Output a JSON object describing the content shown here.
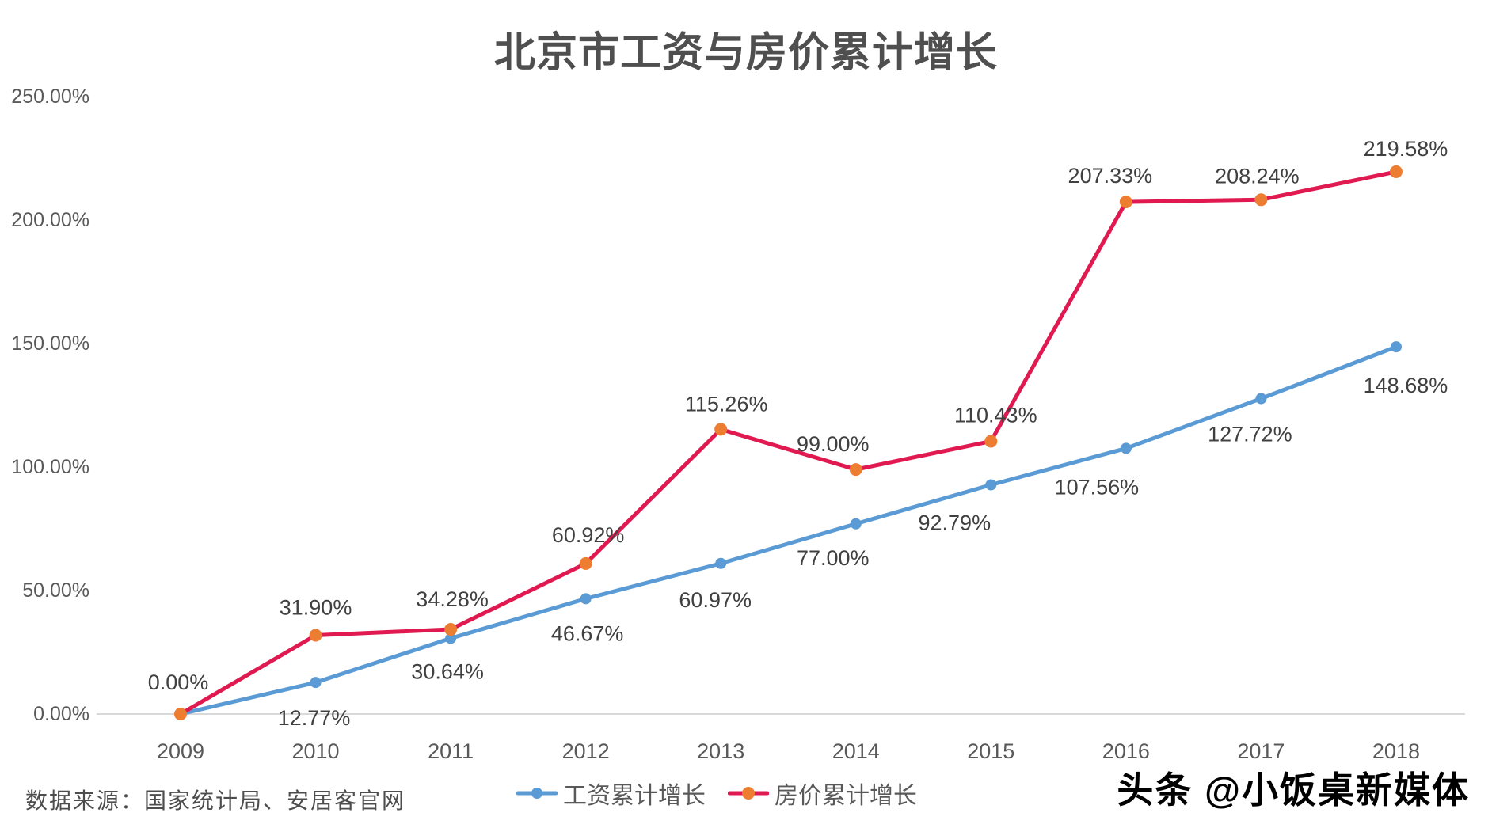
{
  "title": "北京市工资与房价累计增长",
  "chart_data": {
    "type": "line",
    "title": "北京市工资与房价累计增长",
    "categories": [
      "2009",
      "2010",
      "2011",
      "2012",
      "2013",
      "2014",
      "2015",
      "2016",
      "2017",
      "2018"
    ],
    "series": [
      {
        "name": "工资累计增长",
        "color": "#5B9BD5",
        "marker_color": "#5B9BD5",
        "values": [
          0.0,
          12.77,
          30.64,
          46.67,
          60.97,
          77.0,
          92.79,
          107.56,
          127.72,
          148.68
        ],
        "labels": [
          "",
          "12.77%",
          "30.64%",
          "46.67%",
          "60.97%",
          "77.00%",
          "92.79%",
          "107.56%",
          "127.72%",
          "148.68%"
        ]
      },
      {
        "name": "房价累计增长",
        "color": "#E01A50",
        "marker_color": "#ED7D31",
        "values": [
          0.0,
          31.9,
          34.28,
          60.92,
          115.26,
          99.0,
          110.43,
          207.33,
          208.24,
          219.58
        ],
        "labels": [
          "0.00%",
          "31.90%",
          "34.28%",
          "60.92%",
          "115.26%",
          "99.00%",
          "110.43%",
          "207.33%",
          "208.24%",
          "219.58%"
        ]
      }
    ],
    "xlabel": "",
    "ylabel": "",
    "y_ticks": [
      "0.00%",
      "50.00%",
      "100.00%",
      "150.00%",
      "200.00%",
      "250.00%"
    ],
    "ylim": [
      0,
      250
    ],
    "y_step": 50,
    "grid": "baseline-only",
    "legend_position": "bottom",
    "label_color": "#404040",
    "axis_text_color": "#595959",
    "axis_line_color": "#D9D9D9",
    "background": "#FFFFFF"
  },
  "footer": {
    "source": "数据来源：国家统计局、安居客官网",
    "watermark": "头条 @小饭桌新媒体"
  }
}
